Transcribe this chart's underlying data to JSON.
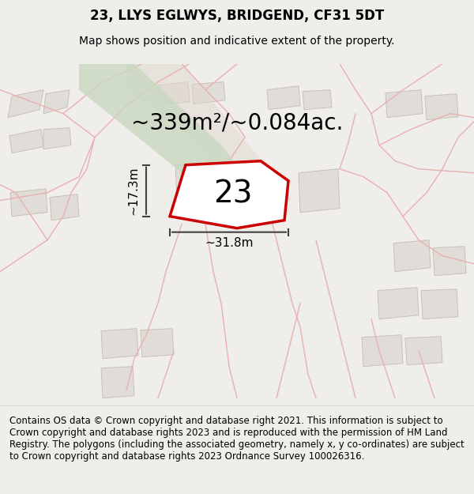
{
  "title": "23, LLYS EGLWYS, BRIDGEND, CF31 5DT",
  "subtitle": "Map shows position and indicative extent of the property.",
  "area_text": "~339m²/~0.084ac.",
  "label_number": "23",
  "dim_width": "~31.8m",
  "dim_height": "~17.3m",
  "footer": "Contains OS data © Crown copyright and database right 2021. This information is subject to Crown copyright and database rights 2023 and is reproduced with the permission of HM Land Registry. The polygons (including the associated geometry, namely x, y co-ordinates) are subject to Crown copyright and database rights 2023 Ordnance Survey 100026316.",
  "bg_color": "#f0eeea",
  "map_bg": "#f5f3f0",
  "road_color": "#c8c0b8",
  "green_strip_color": "#c8d8c0",
  "plot_outline_color": "#cc0000",
  "plot_fill_color": "#ffffff",
  "building_fill": "#e0ddd8",
  "building_outline": "#c8c0b8",
  "dim_line_color": "#404040",
  "footer_bg": "#ffffff",
  "title_fontsize": 12,
  "subtitle_fontsize": 10,
  "area_fontsize": 20,
  "label_fontsize": 28,
  "dim_fontsize": 11,
  "footer_fontsize": 8.5
}
